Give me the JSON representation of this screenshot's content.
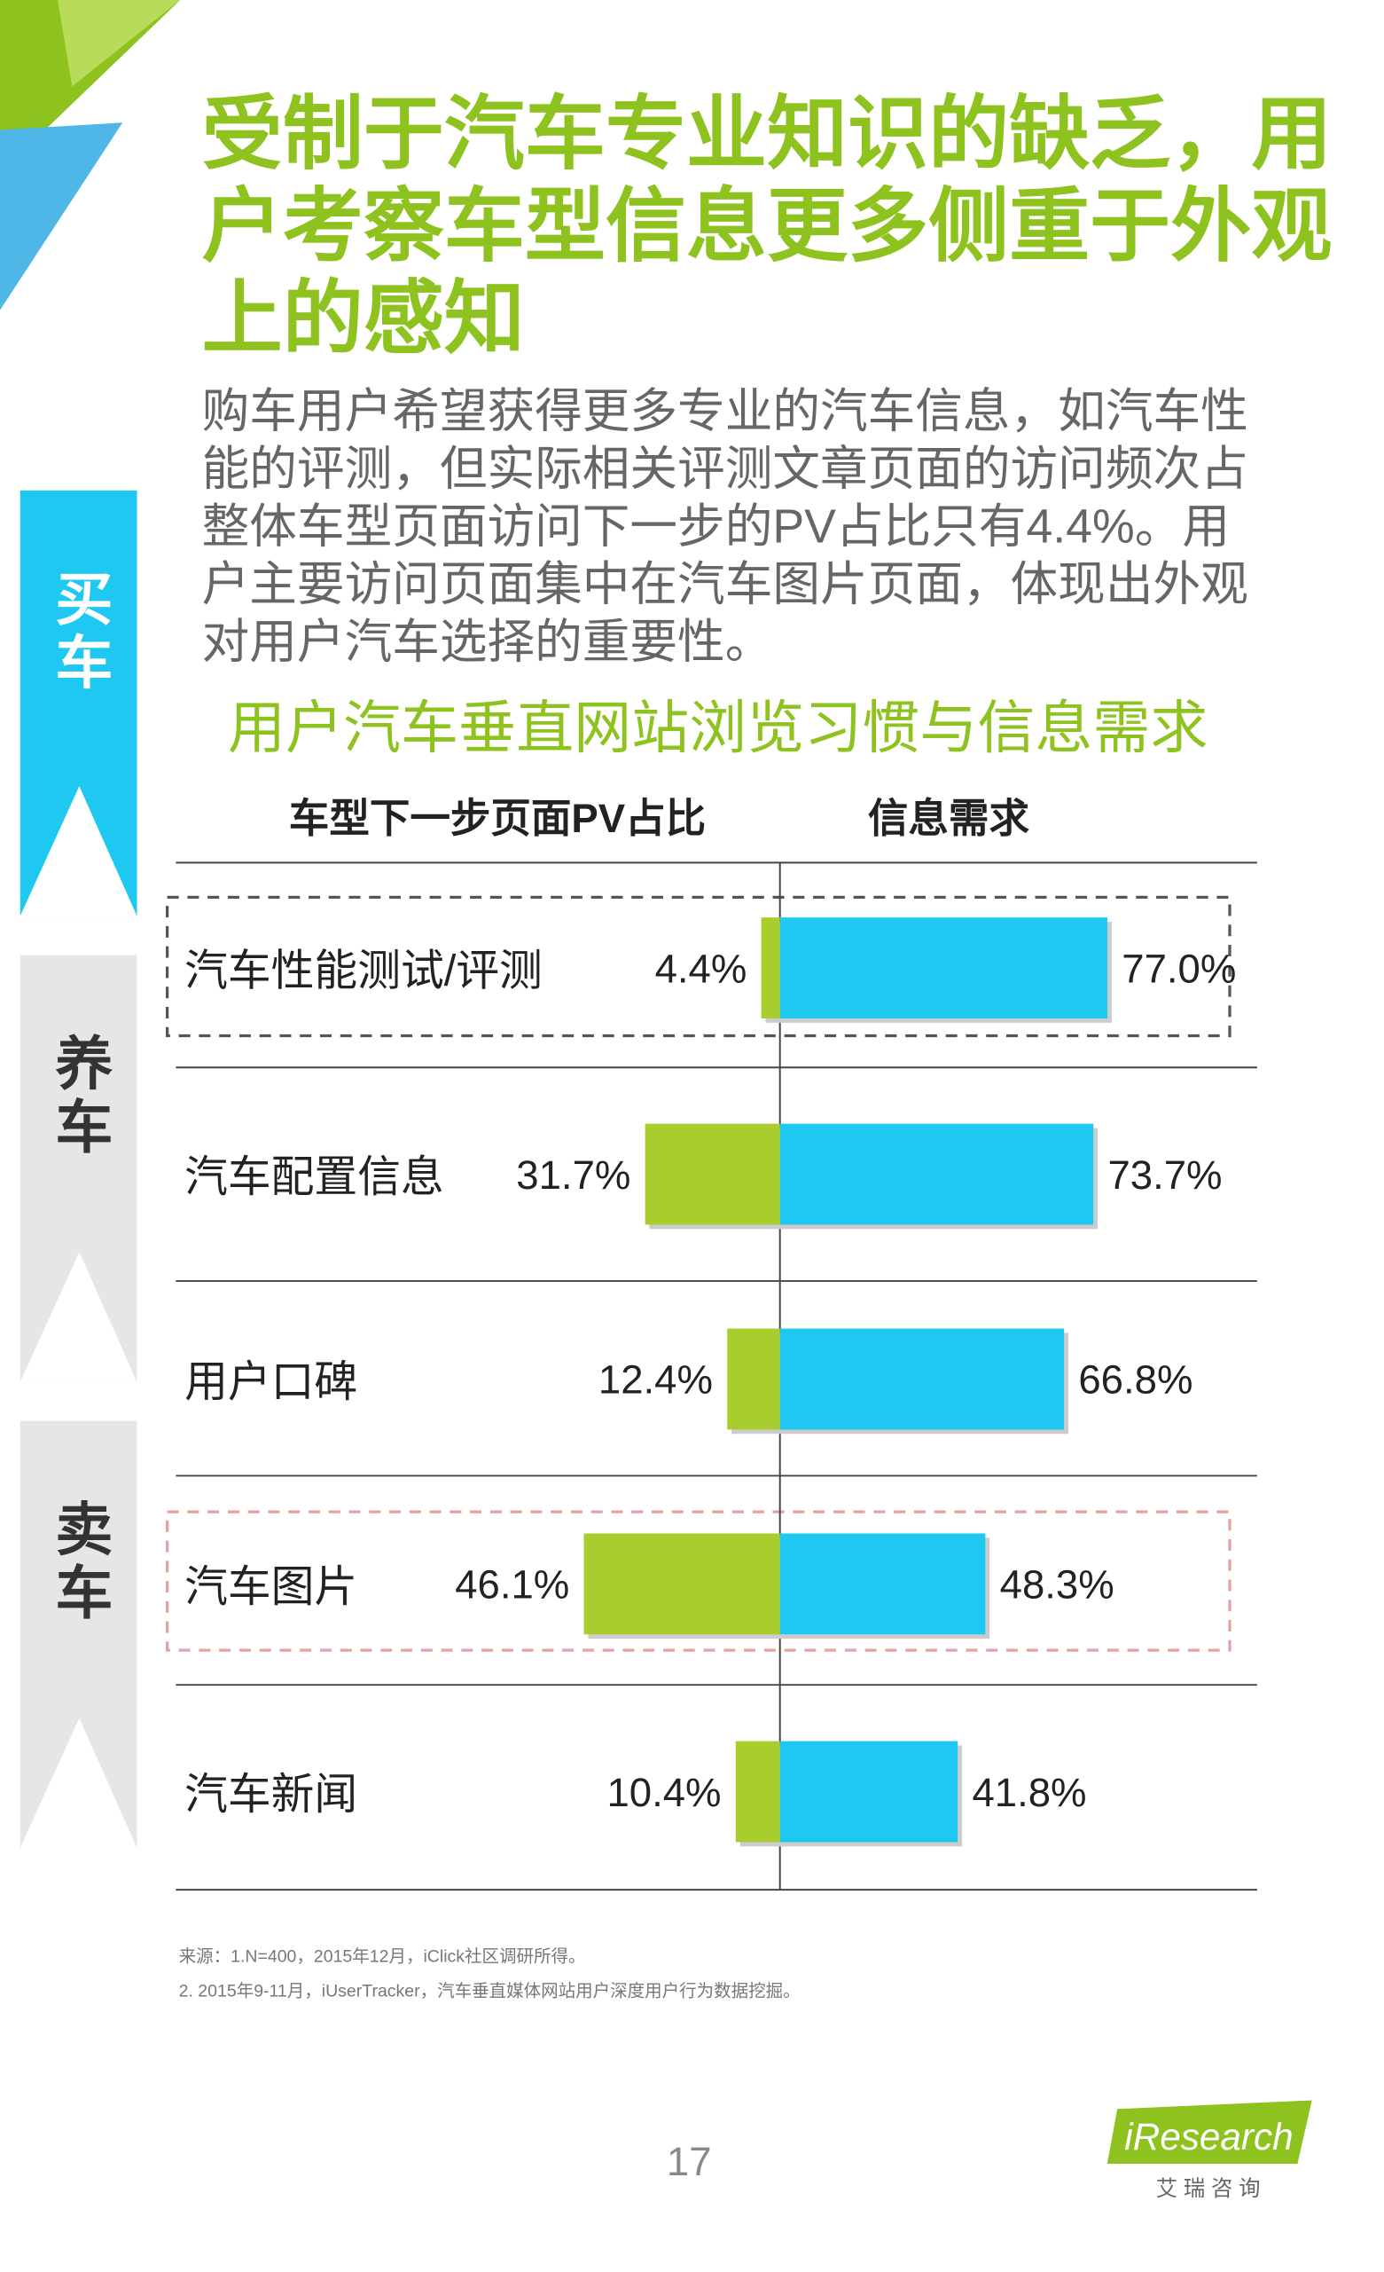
{
  "header": {
    "title_lines": [
      "受制于汽车专业知识的缺乏，用",
      "户考察车型信息更多侧重于外观",
      "上的感知"
    ],
    "body_lines": [
      "购车用户希望获得更多专业的汽车信息，如汽车性",
      "能的评测，但实际相关评测文章页面的访问频次占",
      "整体车型页面访问下一步的PV占比只有4.4%。用",
      "户主要访问页面集中在汽车图片页面，体现出外观",
      "对用户汽车选择的重要性。"
    ]
  },
  "tabs": [
    "买车",
    "养车",
    "卖车"
  ],
  "chart_data": {
    "type": "diverging-bar",
    "title": "用户汽车垂直网站浏览习惯与信息需求",
    "categories": [
      "汽车性能测试/评测",
      "汽车配置信息",
      "用户口碑",
      "汽车图片",
      "汽车新闻"
    ],
    "series": [
      {
        "name": "车型下一步页面PV占比",
        "color": "#a9cd2c",
        "values": [
          4.4,
          31.7,
          12.4,
          46.1,
          10.4
        ],
        "value_labels": [
          "4.4%",
          "31.7%",
          "12.4%",
          "46.1%",
          "10.4%"
        ]
      },
      {
        "name": "信息需求",
        "color": "#1ec8f0",
        "values": [
          77.0,
          73.7,
          66.8,
          48.3,
          41.8
        ],
        "value_labels": [
          "77.0%",
          "73.7%",
          "66.8%",
          "48.3%",
          "41.8%"
        ]
      }
    ]
  },
  "sources": [
    "来源：1.N=400，2015年12月，iClick社区调研所得。",
    "2. 2015年9-11月，iUserTracker，汽车垂直媒体网站用户深度用户行为数据挖掘。"
  ],
  "footer": {
    "page_number": "17",
    "logo": "iResearch",
    "logo_sub": "艾 瑞 咨 询"
  }
}
